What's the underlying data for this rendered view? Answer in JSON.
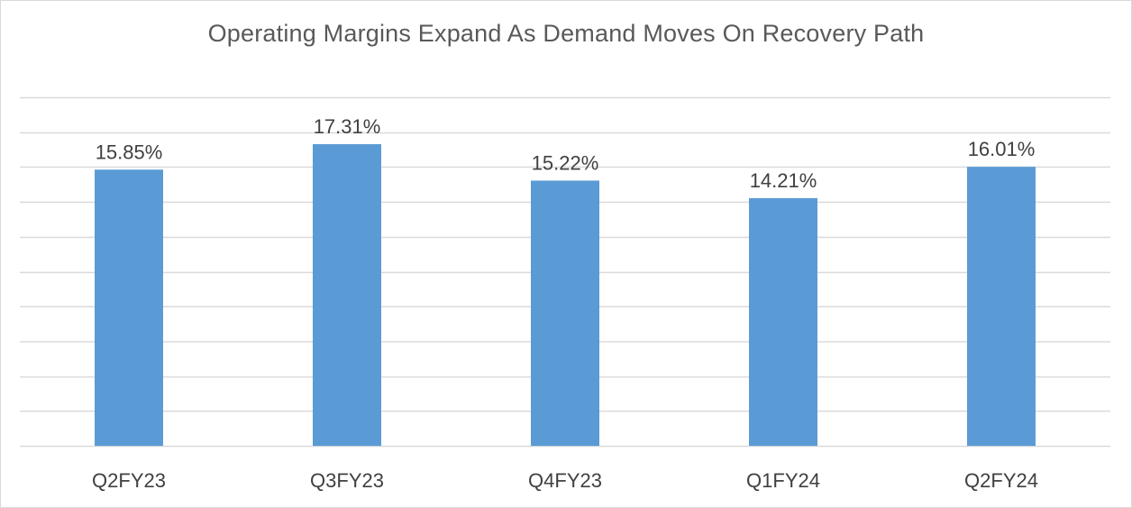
{
  "chart_data": {
    "type": "bar",
    "title": "Operating Margins Expand As Demand Moves On Recovery Path",
    "categories": [
      "Q2FY23",
      "Q3FY23",
      "Q4FY23",
      "Q1FY24",
      "Q2FY24"
    ],
    "values": [
      15.85,
      17.31,
      15.22,
      14.21,
      16.01
    ],
    "data_labels": [
      "15.85%",
      "17.31%",
      "15.22%",
      "14.21%",
      "16.01%"
    ],
    "ylim": [
      0,
      20
    ],
    "grid": true,
    "bar_color": "#5b9bd5",
    "gridline_color": "#d9d9d9"
  }
}
